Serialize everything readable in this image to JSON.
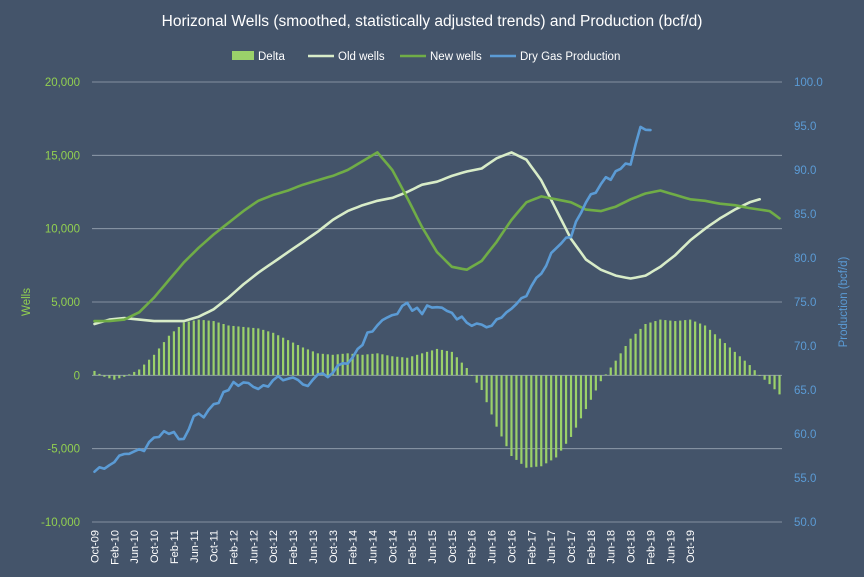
{
  "chart_data": {
    "type": "bar+line",
    "title": "Horizonal Wells (smoothed, statistically adjusted trends) and Production (bcf/d)",
    "y_left": {
      "label": "Wells",
      "range": [
        -10000,
        20000
      ],
      "ticks": [
        "20,000",
        "15,000",
        "10,000",
        "5,000",
        "0",
        "-5,000",
        "-10,000"
      ]
    },
    "y_right": {
      "label": "Production (bcf/d)",
      "range": [
        50,
        100
      ],
      "ticks": [
        "100.0",
        "95.0",
        "90.0",
        "85.0",
        "80.0",
        "75.0",
        "70.0",
        "65.0",
        "60.0",
        "55.0",
        "50.0"
      ]
    },
    "x_axis": {
      "start": "Oct-09",
      "months": 121,
      "tick_labels": [
        "Oct-09",
        "Feb-10",
        "Jun-10",
        "Oct-10",
        "Feb-11",
        "Jun-11",
        "Oct-11",
        "Feb-12",
        "Jun-12",
        "Oct-12",
        "Feb-13",
        "Jun-13",
        "Oct-13",
        "Feb-14",
        "Jun-14",
        "Oct-14",
        "Feb-15",
        "Jun-15",
        "Oct-15",
        "Feb-16",
        "Jun-16",
        "Oct-16",
        "Feb-17",
        "Jun-17",
        "Oct-17",
        "Feb-18",
        "Jun-18",
        "Oct-18",
        "Feb-19",
        "Jun-19",
        "Oct-19"
      ]
    },
    "grid": "horizontal",
    "legend_position": "top",
    "colors": {
      "background": "#44546a",
      "delta": "#9bd16a",
      "old_wells": "#d8ecc8",
      "new_wells": "#70ad47",
      "dry_gas": "#5b9bd5",
      "grid": "#9aa5b3",
      "left_axis_text": "#92d050",
      "right_axis_text": "#5b9bd5",
      "x_axis_text": "#ffffff",
      "title_text": "#ffffff"
    },
    "series": [
      {
        "name": "Delta",
        "kind": "bar",
        "axis": "left",
        "anchors": [
          [
            0,
            300
          ],
          [
            2,
            -100
          ],
          [
            4,
            -300
          ],
          [
            6,
            -100
          ],
          [
            9,
            400
          ],
          [
            12,
            1400
          ],
          [
            15,
            2700
          ],
          [
            18,
            3600
          ],
          [
            21,
            3800
          ],
          [
            24,
            3700
          ],
          [
            27,
            3400
          ],
          [
            33,
            3200
          ],
          [
            36,
            2900
          ],
          [
            39,
            2400
          ],
          [
            42,
            1900
          ],
          [
            45,
            1500
          ],
          [
            48,
            1400
          ],
          [
            51,
            1500
          ],
          [
            54,
            1400
          ],
          [
            57,
            1500
          ],
          [
            60,
            1300
          ],
          [
            63,
            1200
          ],
          [
            66,
            1500
          ],
          [
            69,
            1800
          ],
          [
            72,
            1600
          ],
          [
            75,
            500
          ],
          [
            78,
            -1000
          ],
          [
            81,
            -3500
          ],
          [
            84,
            -5500
          ],
          [
            87,
            -6300
          ],
          [
            90,
            -6200
          ],
          [
            93,
            -5600
          ],
          [
            96,
            -4200
          ],
          [
            99,
            -2300
          ],
          [
            102,
            -400
          ],
          [
            105,
            1000
          ],
          [
            108,
            2500
          ],
          [
            111,
            3500
          ],
          [
            114,
            3800
          ],
          [
            117,
            3700
          ],
          [
            120,
            3800
          ],
          [
            123,
            3400
          ],
          [
            126,
            2500
          ],
          [
            129,
            1600
          ],
          [
            132,
            700
          ],
          [
            134,
            0
          ],
          [
            136,
            -600
          ],
          [
            138,
            -1300
          ]
        ]
      },
      {
        "name": "Old wells",
        "kind": "line",
        "axis": "left",
        "anchors": [
          [
            0,
            3500
          ],
          [
            3,
            3800
          ],
          [
            6,
            3900
          ],
          [
            9,
            3800
          ],
          [
            12,
            3700
          ],
          [
            15,
            3700
          ],
          [
            18,
            3700
          ],
          [
            21,
            4000
          ],
          [
            24,
            4500
          ],
          [
            27,
            5300
          ],
          [
            30,
            6200
          ],
          [
            33,
            7000
          ],
          [
            36,
            7700
          ],
          [
            39,
            8400
          ],
          [
            42,
            9100
          ],
          [
            45,
            9800
          ],
          [
            48,
            10600
          ],
          [
            51,
            11200
          ],
          [
            54,
            11600
          ],
          [
            57,
            11900
          ],
          [
            60,
            12100
          ],
          [
            63,
            12500
          ],
          [
            66,
            13000
          ],
          [
            69,
            13200
          ],
          [
            72,
            13600
          ],
          [
            75,
            13900
          ],
          [
            78,
            14100
          ],
          [
            81,
            14800
          ],
          [
            84,
            15200
          ],
          [
            87,
            14700
          ],
          [
            90,
            13300
          ],
          [
            93,
            11300
          ],
          [
            96,
            9300
          ],
          [
            99,
            7900
          ],
          [
            102,
            7200
          ],
          [
            105,
            6800
          ],
          [
            108,
            6600
          ],
          [
            111,
            6800
          ],
          [
            114,
            7400
          ],
          [
            117,
            8200
          ],
          [
            120,
            9200
          ],
          [
            123,
            10000
          ],
          [
            126,
            10700
          ],
          [
            129,
            11300
          ],
          [
            132,
            11800
          ],
          [
            134,
            12000
          ]
        ]
      },
      {
        "name": "New wells",
        "kind": "line",
        "axis": "left",
        "anchors": [
          [
            0,
            3700
          ],
          [
            3,
            3700
          ],
          [
            6,
            3800
          ],
          [
            9,
            4300
          ],
          [
            12,
            5300
          ],
          [
            15,
            6500
          ],
          [
            18,
            7700
          ],
          [
            21,
            8700
          ],
          [
            24,
            9600
          ],
          [
            27,
            10400
          ],
          [
            30,
            11200
          ],
          [
            33,
            11900
          ],
          [
            36,
            12300
          ],
          [
            39,
            12600
          ],
          [
            42,
            13000
          ],
          [
            45,
            13300
          ],
          [
            48,
            13600
          ],
          [
            51,
            14000
          ],
          [
            54,
            14600
          ],
          [
            57,
            15200
          ],
          [
            60,
            14000
          ],
          [
            63,
            12100
          ],
          [
            66,
            10100
          ],
          [
            69,
            8400
          ],
          [
            72,
            7400
          ],
          [
            75,
            7200
          ],
          [
            78,
            7800
          ],
          [
            81,
            9100
          ],
          [
            84,
            10600
          ],
          [
            87,
            11800
          ],
          [
            90,
            12200
          ],
          [
            93,
            12000
          ],
          [
            96,
            11800
          ],
          [
            99,
            11300
          ],
          [
            102,
            11200
          ],
          [
            105,
            11500
          ],
          [
            108,
            12000
          ],
          [
            111,
            12400
          ],
          [
            114,
            12600
          ],
          [
            117,
            12300
          ],
          [
            120,
            12000
          ],
          [
            123,
            11900
          ],
          [
            126,
            11700
          ],
          [
            129,
            11600
          ],
          [
            132,
            11400
          ],
          [
            134,
            11300
          ],
          [
            136,
            11200
          ],
          [
            138,
            10700
          ]
        ]
      },
      {
        "name": "Dry Gas Production",
        "kind": "line",
        "axis": "right",
        "anchors": [
          [
            0,
            56.0
          ],
          [
            2,
            56.0
          ],
          [
            4,
            57.0
          ],
          [
            6,
            57.5
          ],
          [
            8,
            58.0
          ],
          [
            10,
            58.5
          ],
          [
            12,
            59.5
          ],
          [
            14,
            60.0
          ],
          [
            16,
            60.3
          ],
          [
            18,
            59.0
          ],
          [
            20,
            61.7
          ],
          [
            22,
            62.3
          ],
          [
            24,
            63.0
          ],
          [
            27,
            65.3
          ],
          [
            30,
            66.0
          ],
          [
            33,
            65.2
          ],
          [
            36,
            66.0
          ],
          [
            39,
            66.5
          ],
          [
            42,
            65.5
          ],
          [
            45,
            66.5
          ],
          [
            48,
            67.0
          ],
          [
            51,
            68.0
          ],
          [
            54,
            70.5
          ],
          [
            57,
            72.5
          ],
          [
            60,
            73.5
          ],
          [
            63,
            74.5
          ],
          [
            66,
            74.0
          ],
          [
            69,
            74.5
          ],
          [
            72,
            73.8
          ],
          [
            75,
            72.8
          ],
          [
            78,
            72.0
          ],
          [
            81,
            73.0
          ],
          [
            84,
            74.0
          ],
          [
            87,
            76.0
          ],
          [
            90,
            78.5
          ],
          [
            93,
            81.0
          ],
          [
            96,
            82.5
          ],
          [
            99,
            86.5
          ],
          [
            102,
            88.5
          ],
          [
            105,
            89.5
          ],
          [
            108,
            91.0
          ],
          [
            110,
            94.5
          ],
          [
            112,
            94.5
          ]
        ]
      }
    ]
  },
  "legend": [
    {
      "name": "Delta",
      "type": "bar",
      "color": "#9bd16a"
    },
    {
      "name": "Old wells",
      "type": "line",
      "color": "#d8ecc8"
    },
    {
      "name": "New wells",
      "type": "line",
      "color": "#70ad47"
    },
    {
      "name": "Dry Gas Production",
      "type": "line",
      "color": "#5b9bd5"
    }
  ]
}
